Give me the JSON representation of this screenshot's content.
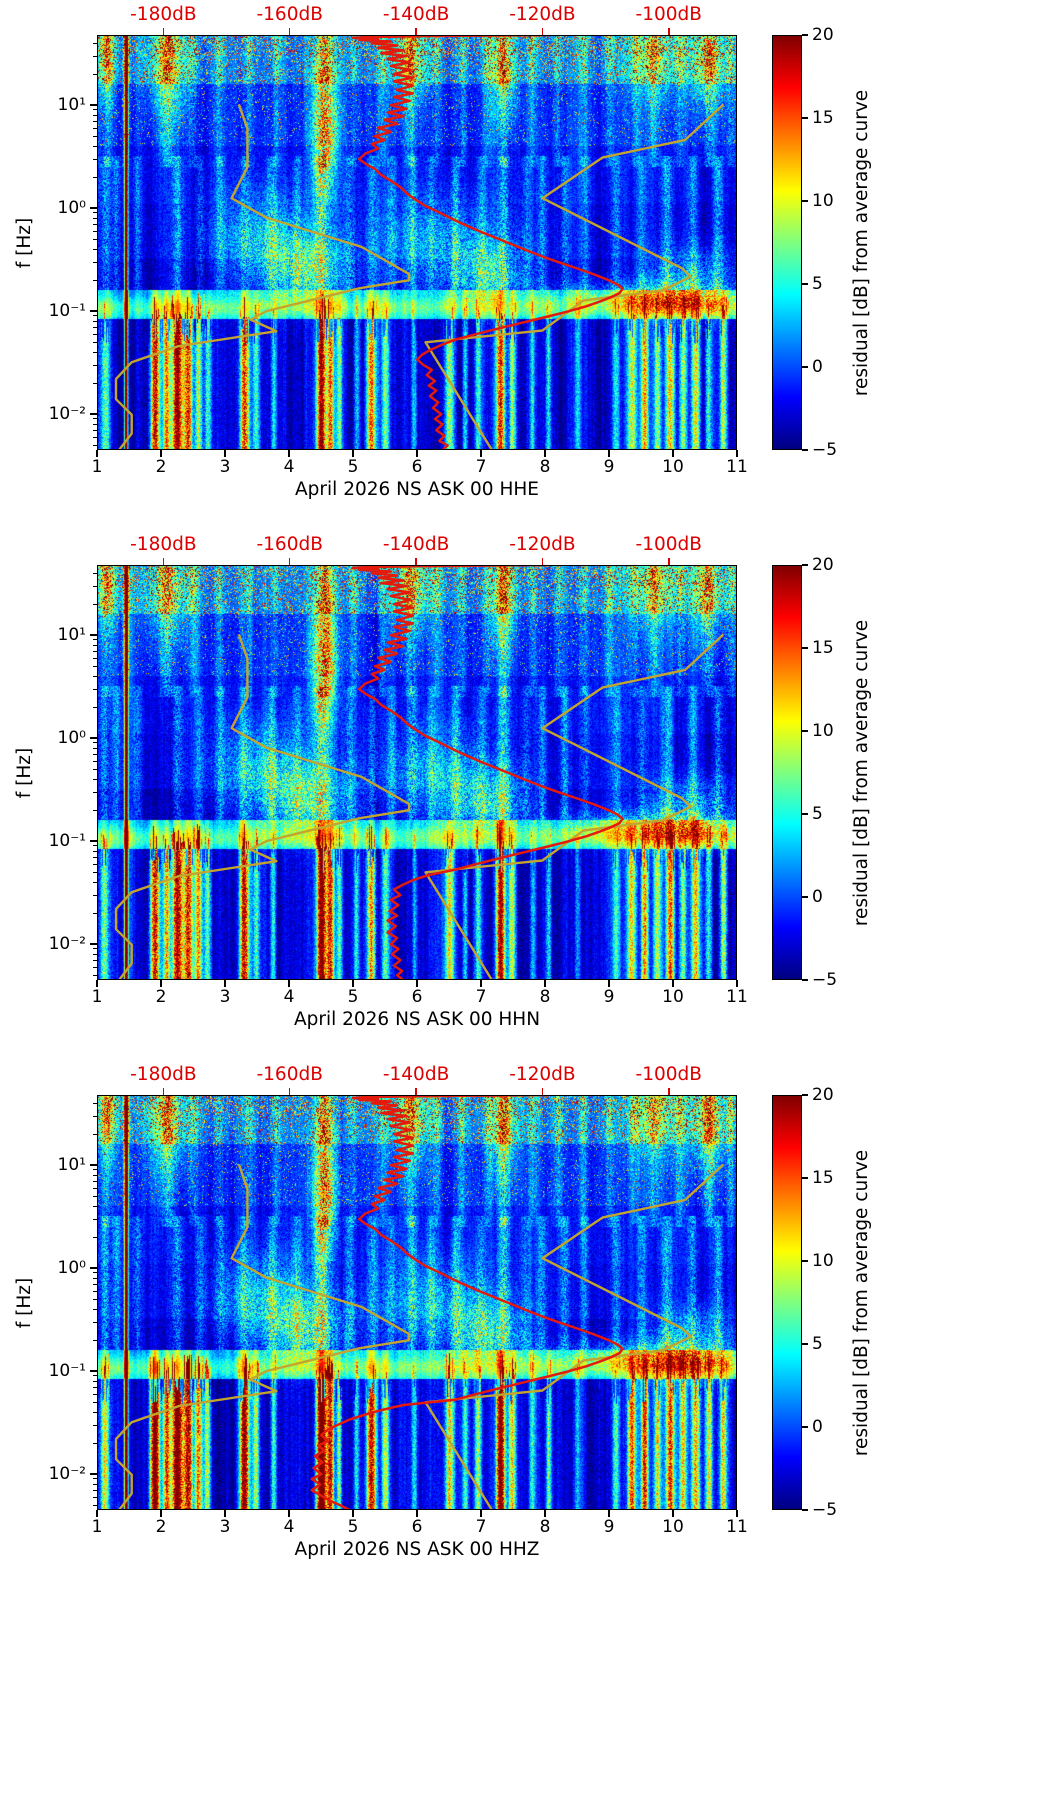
{
  "page": {
    "background": "#ffffff"
  },
  "chart_data": {
    "type": "heatmap",
    "title": "",
    "x_axis": {
      "min": 1,
      "max": 11,
      "ticks": [
        {
          "v": 1,
          "label": "1"
        },
        {
          "v": 2,
          "label": "2"
        },
        {
          "v": 3,
          "label": "3"
        },
        {
          "v": 4,
          "label": "4"
        },
        {
          "v": 5,
          "label": "5"
        },
        {
          "v": 6,
          "label": "6"
        },
        {
          "v": 7,
          "label": "7"
        },
        {
          "v": 8,
          "label": "8"
        },
        {
          "v": 9,
          "label": "9"
        },
        {
          "v": 10,
          "label": "10"
        },
        {
          "v": 11,
          "label": "11"
        }
      ]
    },
    "y_axis": {
      "label": "f [Hz]",
      "scale": "log",
      "min": 0.0045,
      "max": 48,
      "ticks": [
        {
          "v": 10,
          "label": "10¹"
        },
        {
          "v": 1,
          "label": "10⁰"
        },
        {
          "v": 0.1,
          "label": "10⁻¹"
        },
        {
          "v": 0.01,
          "label": "10⁻²"
        }
      ]
    },
    "top_axis": {
      "color": "#dd0000",
      "db_min": -190.5,
      "db_max": -89.2,
      "ticks": [
        {
          "v": -180,
          "label": "-180dB"
        },
        {
          "v": -160,
          "label": "-160dB"
        },
        {
          "v": -140,
          "label": "-140dB"
        },
        {
          "v": -120,
          "label": "-120dB"
        },
        {
          "v": -100,
          "label": "-100dB"
        }
      ]
    },
    "colorbar": {
      "label": "residual [dB] from average curve",
      "colormap": "jet",
      "min": -5,
      "max": 20,
      "ticks": [
        {
          "v": 20,
          "label": "20"
        },
        {
          "v": 15,
          "label": "15"
        },
        {
          "v": 10,
          "label": "10"
        },
        {
          "v": 5,
          "label": "5"
        },
        {
          "v": 0,
          "label": "0"
        },
        {
          "v": -5,
          "label": "−5"
        }
      ]
    },
    "overlays": {
      "mean_color": "#e41a0c",
      "model_color": "#c2a52e",
      "model_low": [
        [
          10,
          -168
        ],
        [
          5.9,
          -166.7
        ],
        [
          2.5,
          -166.7
        ],
        [
          1.25,
          -169.2
        ],
        [
          0.81,
          -163.7
        ],
        [
          0.42,
          -148.6
        ],
        [
          0.23,
          -141.1
        ],
        [
          0.2,
          -141.1
        ],
        [
          0.167,
          -149
        ],
        [
          0.1,
          -163.7
        ],
        [
          0.083,
          -166.2
        ],
        [
          0.064,
          -162.1
        ],
        [
          0.046,
          -177.5
        ],
        [
          0.032,
          -185
        ],
        [
          0.022,
          -187.5
        ],
        [
          0.014,
          -187.5
        ],
        [
          0.0099,
          -185
        ],
        [
          0.0065,
          -185
        ],
        [
          0.0045,
          -187
        ]
      ],
      "model_high": [
        [
          10,
          -91.5
        ],
        [
          4.6,
          -97.4
        ],
        [
          3.1,
          -110.5
        ],
        [
          1.25,
          -120
        ],
        [
          0.263,
          -98
        ],
        [
          0.217,
          -96.5
        ],
        [
          0.159,
          -101
        ],
        [
          0.127,
          -113.5
        ],
        [
          0.065,
          -120
        ],
        [
          0.05,
          -138.5
        ],
        [
          0.0045,
          -128
        ]
      ],
      "mean_curve_hf": [
        [
          48,
          -119
        ],
        [
          47.6,
          -125
        ],
        [
          47.2,
          -132
        ],
        [
          46.6,
          -140
        ],
        [
          46,
          -147
        ],
        [
          45,
          -150
        ],
        [
          44,
          -146
        ],
        [
          43,
          -149
        ],
        [
          41.5,
          -144
        ],
        [
          40,
          -147
        ],
        [
          38,
          -143
        ],
        [
          36,
          -146
        ],
        [
          34,
          -142
        ],
        [
          32,
          -145.5
        ],
        [
          30,
          -141.5
        ],
        [
          28,
          -144.5
        ],
        [
          26,
          -141
        ],
        [
          24,
          -144
        ],
        [
          22,
          -141
        ],
        [
          20,
          -143.5
        ],
        [
          18.5,
          -140.5
        ],
        [
          17,
          -143.5
        ],
        [
          15.5,
          -140.5
        ],
        [
          14,
          -143
        ],
        [
          13,
          -140.5
        ],
        [
          12,
          -143.5
        ],
        [
          11,
          -141
        ],
        [
          10,
          -144
        ],
        [
          9.2,
          -141.5
        ],
        [
          8.5,
          -144.5
        ],
        [
          7.8,
          -142
        ],
        [
          7.2,
          -145
        ],
        [
          6.6,
          -143
        ],
        [
          6,
          -146
        ],
        [
          5.5,
          -144
        ],
        [
          5,
          -146.5
        ],
        [
          4.6,
          -145
        ],
        [
          4.2,
          -147
        ],
        [
          3.8,
          -146
        ],
        [
          3.4,
          -148
        ],
        [
          3,
          -149
        ],
        [
          2.7,
          -148
        ],
        [
          2.4,
          -146.5
        ],
        [
          2.1,
          -145.5
        ],
        [
          1.85,
          -144
        ],
        [
          1.6,
          -142.5
        ],
        [
          1.4,
          -141.5
        ],
        [
          1.2,
          -140
        ],
        [
          1.05,
          -138.5
        ],
        [
          0.92,
          -136.5
        ],
        [
          0.8,
          -134.5
        ],
        [
          0.7,
          -132.5
        ],
        [
          0.6,
          -130
        ],
        [
          0.52,
          -127.5
        ],
        [
          0.45,
          -125
        ],
        [
          0.39,
          -122.5
        ],
        [
          0.34,
          -120
        ],
        [
          0.3,
          -117.5
        ],
        [
          0.26,
          -114.5
        ],
        [
          0.23,
          -112
        ],
        [
          0.2,
          -109.5
        ],
        [
          0.18,
          -108
        ],
        [
          0.165,
          -107.3
        ],
        [
          0.15,
          -107.8
        ],
        [
          0.138,
          -109
        ],
        [
          0.125,
          -110.8
        ],
        [
          0.112,
          -113
        ],
        [
          0.1,
          -115.8
        ],
        [
          0.09,
          -118.8
        ],
        [
          0.082,
          -121.5
        ],
        [
          0.074,
          -124.5
        ],
        [
          0.066,
          -127.8
        ],
        [
          0.059,
          -131
        ],
        [
          0.053,
          -133.8
        ]
      ]
    },
    "panels": [
      {
        "channel": "HHE",
        "xlabel": "April 2026 NS ASK 00 HHE",
        "seed": 11,
        "low_scale": 1.0,
        "mid_scale": 1.0,
        "mean_curve_lf": [
          [
            0.047,
            -136
          ],
          [
            0.042,
            -137.8
          ],
          [
            0.038,
            -139
          ],
          [
            0.034,
            -139.8
          ],
          [
            0.03,
            -138.8
          ],
          [
            0.027,
            -137.5
          ],
          [
            0.024,
            -138.3
          ],
          [
            0.021,
            -137
          ],
          [
            0.019,
            -138
          ],
          [
            0.017,
            -136.8
          ],
          [
            0.015,
            -137.8
          ],
          [
            0.013,
            -136.5
          ],
          [
            0.0115,
            -137.3
          ],
          [
            0.01,
            -136
          ],
          [
            0.009,
            -137
          ],
          [
            0.008,
            -135.8
          ],
          [
            0.007,
            -136.8
          ],
          [
            0.0062,
            -135.5
          ],
          [
            0.0055,
            -136.3
          ],
          [
            0.005,
            -135
          ],
          [
            0.0045,
            -135.8
          ]
        ]
      },
      {
        "channel": "HHN",
        "xlabel": "April 2026 NS ASK 00 HHN",
        "seed": 22,
        "low_scale": 1.05,
        "mid_scale": 1.0,
        "mean_curve_lf": [
          [
            0.047,
            -138
          ],
          [
            0.042,
            -140.5
          ],
          [
            0.038,
            -142
          ],
          [
            0.034,
            -143.5
          ],
          [
            0.03,
            -142.5
          ],
          [
            0.027,
            -144
          ],
          [
            0.024,
            -142.8
          ],
          [
            0.021,
            -144.2
          ],
          [
            0.019,
            -143
          ],
          [
            0.017,
            -144.5
          ],
          [
            0.015,
            -143.2
          ],
          [
            0.013,
            -144.5
          ],
          [
            0.0115,
            -143
          ],
          [
            0.01,
            -144
          ],
          [
            0.009,
            -142.8
          ],
          [
            0.008,
            -143.8
          ],
          [
            0.007,
            -142.5
          ],
          [
            0.0062,
            -143.5
          ],
          [
            0.0055,
            -142.2
          ],
          [
            0.005,
            -143
          ],
          [
            0.0045,
            -142
          ]
        ]
      },
      {
        "channel": "HHZ",
        "xlabel": "April 2026 NS ASK 00 HHZ",
        "seed": 33,
        "low_scale": 1.25,
        "mid_scale": 1.1,
        "mean_curve_lf": [
          [
            0.047,
            -142
          ],
          [
            0.042,
            -145.5
          ],
          [
            0.038,
            -148
          ],
          [
            0.034,
            -150.5
          ],
          [
            0.03,
            -152.5
          ],
          [
            0.027,
            -154
          ],
          [
            0.024,
            -155
          ],
          [
            0.021,
            -154
          ],
          [
            0.019,
            -155.5
          ],
          [
            0.017,
            -154.5
          ],
          [
            0.015,
            -156
          ],
          [
            0.013,
            -154.8
          ],
          [
            0.0115,
            -156.2
          ],
          [
            0.01,
            -155
          ],
          [
            0.009,
            -156.5
          ],
          [
            0.008,
            -155.2
          ],
          [
            0.007,
            -156.5
          ],
          [
            0.0062,
            -155
          ],
          [
            0.0055,
            -153.5
          ],
          [
            0.005,
            -152
          ],
          [
            0.0045,
            -150.5
          ]
        ]
      }
    ],
    "texture": {
      "line": {
        "d": 1.45,
        "w": 0.02,
        "a": 30
      },
      "low_streaks": [
        [
          1.12,
          0.05,
          10
        ],
        [
          1.9,
          0.05,
          22
        ],
        [
          2.08,
          0.04,
          15
        ],
        [
          2.25,
          0.06,
          24
        ],
        [
          2.42,
          0.05,
          19
        ],
        [
          2.58,
          0.04,
          14
        ],
        [
          2.72,
          0.04,
          10
        ],
        [
          3.3,
          0.05,
          21
        ],
        [
          3.48,
          0.04,
          9
        ],
        [
          3.75,
          0.03,
          7
        ],
        [
          4.5,
          0.05,
          26
        ],
        [
          4.64,
          0.04,
          18
        ],
        [
          4.78,
          0.03,
          10
        ],
        [
          5.05,
          0.03,
          7
        ],
        [
          5.28,
          0.05,
          17
        ],
        [
          5.5,
          0.04,
          9
        ],
        [
          5.95,
          0.03,
          6
        ],
        [
          6.5,
          0.05,
          13
        ],
        [
          6.75,
          0.03,
          7
        ],
        [
          6.95,
          0.04,
          9
        ],
        [
          7.3,
          0.05,
          21
        ],
        [
          7.48,
          0.04,
          12
        ],
        [
          7.8,
          0.03,
          6
        ],
        [
          8.05,
          0.03,
          8
        ],
        [
          8.5,
          0.03,
          5
        ],
        [
          9.1,
          0.04,
          7
        ],
        [
          9.35,
          0.05,
          13
        ],
        [
          9.55,
          0.04,
          15
        ],
        [
          9.75,
          0.04,
          11
        ],
        [
          9.95,
          0.05,
          15
        ],
        [
          10.15,
          0.04,
          11
        ],
        [
          10.35,
          0.05,
          13
        ],
        [
          10.55,
          0.04,
          10
        ],
        [
          10.78,
          0.04,
          12
        ]
      ],
      "mid_streaks": [
        [
          1.12,
          0.05,
          5
        ],
        [
          1.3,
          0.05,
          4
        ],
        [
          1.62,
          0.05,
          3.5
        ],
        [
          2.25,
          0.06,
          5
        ],
        [
          2.6,
          0.05,
          3
        ],
        [
          2.92,
          0.05,
          4
        ],
        [
          3.3,
          0.05,
          4
        ],
        [
          3.72,
          0.05,
          4.5
        ],
        [
          4.12,
          0.05,
          3.5
        ],
        [
          4.5,
          0.07,
          7
        ],
        [
          4.95,
          0.05,
          4
        ],
        [
          5.3,
          0.05,
          4
        ],
        [
          5.6,
          0.05,
          3.5
        ],
        [
          5.92,
          0.05,
          5
        ],
        [
          6.22,
          0.05,
          3.5
        ],
        [
          6.6,
          0.05,
          4.5
        ],
        [
          7.0,
          0.05,
          3.5
        ],
        [
          7.35,
          0.06,
          6
        ],
        [
          7.7,
          0.05,
          3
        ],
        [
          7.95,
          0.05,
          4
        ],
        [
          8.3,
          0.05,
          4.5
        ],
        [
          8.62,
          0.05,
          3.5
        ],
        [
          9.1,
          0.05,
          4
        ],
        [
          9.5,
          0.05,
          3.5
        ],
        [
          9.9,
          0.06,
          5
        ],
        [
          10.3,
          0.05,
          4.5
        ],
        [
          10.7,
          0.05,
          5
        ]
      ],
      "top_streaks": [
        [
          1.15,
          0.06,
          6
        ],
        [
          1.45,
          0.04,
          5
        ],
        [
          2.1,
          0.08,
          8
        ],
        [
          2.5,
          0.05,
          5
        ],
        [
          2.9,
          0.05,
          5
        ],
        [
          3.35,
          0.05,
          6
        ],
        [
          3.8,
          0.05,
          5
        ],
        [
          4.55,
          0.08,
          10
        ],
        [
          5.0,
          0.05,
          5
        ],
        [
          5.45,
          0.05,
          5
        ],
        [
          5.9,
          0.06,
          8
        ],
        [
          6.3,
          0.05,
          5
        ],
        [
          6.7,
          0.05,
          6
        ],
        [
          7.1,
          0.05,
          5
        ],
        [
          7.35,
          0.06,
          9
        ],
        [
          7.8,
          0.05,
          5
        ],
        [
          8.2,
          0.05,
          6
        ],
        [
          8.6,
          0.05,
          5
        ],
        [
          9.0,
          0.05,
          6
        ],
        [
          9.4,
          0.05,
          5
        ],
        [
          9.7,
          0.06,
          7
        ],
        [
          10.1,
          0.05,
          6
        ],
        [
          10.55,
          0.06,
          9
        ],
        [
          10.9,
          0.05,
          6
        ]
      ],
      "blobs": [
        [
          3.6,
          0.5,
          0.55,
          0.3,
          6
        ],
        [
          4.3,
          0.24,
          0.45,
          0.22,
          8
        ],
        [
          6.4,
          0.45,
          0.7,
          0.3,
          5
        ],
        [
          7.1,
          0.22,
          0.4,
          0.2,
          7
        ],
        [
          9.0,
          0.14,
          0.8,
          0.1,
          4
        ],
        [
          10.2,
          0.13,
          0.6,
          0.12,
          9
        ],
        [
          10.3,
          0.25,
          0.5,
          0.15,
          5
        ],
        [
          4.55,
          6.0,
          0.14,
          0.5,
          12
        ],
        [
          2.1,
          25,
          0.25,
          0.35,
          7
        ],
        [
          5.9,
          28,
          0.2,
          0.3,
          7
        ],
        [
          7.35,
          22,
          0.15,
          0.35,
          8
        ],
        [
          9.7,
          30,
          0.3,
          0.3,
          6
        ],
        [
          10.55,
          25,
          0.2,
          0.3,
          8
        ],
        [
          1.15,
          30,
          0.1,
          0.3,
          8
        ]
      ]
    }
  }
}
